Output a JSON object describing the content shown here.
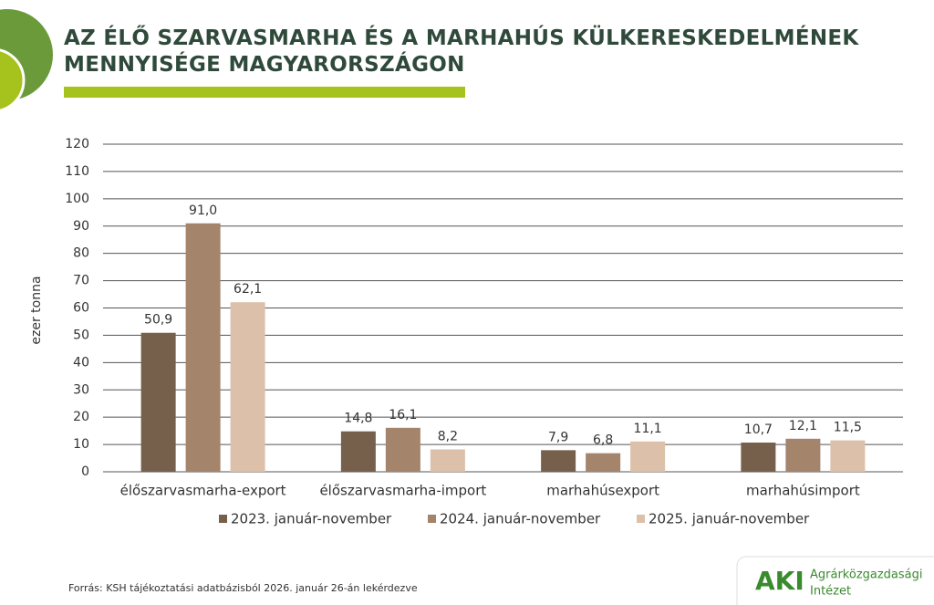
{
  "chart_data": {
    "type": "bar",
    "title": "AZ ÉLŐ SZARVASMARHA ÉS A MARHAHÚS KÜLKERESKEDELMÉNEK MENNYISÉGE MAGYARORSZÁGON",
    "ylabel": "ezer tonna",
    "categories": [
      "élőszarvasmarha-export",
      "élőszarvasmarha-import",
      "marhahúsexport",
      "marhahúsimport"
    ],
    "series": [
      {
        "name": "2023. január-november",
        "color": "#76604b",
        "values": [
          50.9,
          14.8,
          7.9,
          10.7
        ],
        "value_labels": [
          "50,9",
          "14,8",
          "7,9",
          "10,7"
        ]
      },
      {
        "name": "2024. január-november",
        "color": "#a5846c",
        "values": [
          91.0,
          16.1,
          6.8,
          12.1
        ],
        "value_labels": [
          "91,0",
          "16,1",
          "6,8",
          "12,1"
        ]
      },
      {
        "name": "2025. január-november",
        "color": "#dcc0aa",
        "values": [
          62.1,
          8.2,
          11.1,
          11.5
        ],
        "value_labels": [
          "62,1",
          "8,2",
          "11,1",
          "11,5"
        ]
      }
    ],
    "ylim": [
      0,
      120
    ],
    "yticks": [
      0,
      10,
      20,
      30,
      40,
      50,
      60,
      70,
      80,
      90,
      100,
      110,
      120
    ],
    "grid": true,
    "legend": "bottom",
    "source": "Forrás: KSH tájékoztatási adatbázisból 2026. január 26-án lekérdezve"
  },
  "logo": {
    "abbr": "AKI",
    "name_lines": [
      "Agrárközgazdasági",
      "Intézet"
    ]
  }
}
